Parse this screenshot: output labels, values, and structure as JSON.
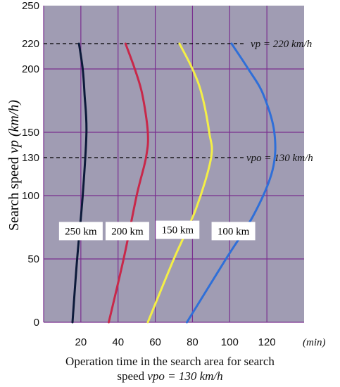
{
  "chart_data": {
    "type": "line",
    "xlabel": {
      "line1": "Operation time in the search area for search",
      "line2_prefix": "speed ",
      "line2_italic": "vpo = 130 km/h"
    },
    "x_unit": "(min)",
    "ylabel": {
      "text": "Search speed  ",
      "italic": "vp (km/h)"
    },
    "x_ticks": [
      20,
      40,
      60,
      80,
      100,
      120
    ],
    "y_ticks": [
      0,
      50,
      100,
      130,
      150,
      200,
      220,
      250
    ],
    "xlim": [
      0,
      140
    ],
    "ylim": [
      0,
      250
    ],
    "grid": true,
    "annotations": [
      {
        "text": "vp = 220 km/h",
        "y": 220
      },
      {
        "text": "vpo = 130 km/h",
        "y": 130
      }
    ],
    "series": [
      {
        "name": "250 km",
        "color": "#0c1a3a",
        "label_at": [
          20,
          72
        ],
        "points": [
          [
            15.5,
            0
          ],
          [
            18,
            50
          ],
          [
            21,
            100
          ],
          [
            23,
            150
          ],
          [
            22,
            180
          ],
          [
            21,
            200
          ],
          [
            19,
            220
          ]
        ]
      },
      {
        "name": "200 km",
        "color": "#c8284a",
        "label_at": [
          45,
          72
        ],
        "points": [
          [
            35,
            0
          ],
          [
            43,
            50
          ],
          [
            50,
            100
          ],
          [
            55,
            130
          ],
          [
            56,
            150
          ],
          [
            53,
            180
          ],
          [
            49,
            200
          ],
          [
            44,
            220
          ]
        ]
      },
      {
        "name": "150 km",
        "color": "#f4ef46",
        "label_at": [
          72,
          73
        ],
        "points": [
          [
            56,
            0
          ],
          [
            70,
            50
          ],
          [
            82,
            90
          ],
          [
            90,
            130
          ],
          [
            89,
            150
          ],
          [
            85,
            180
          ],
          [
            80,
            200
          ],
          [
            73,
            220
          ]
        ]
      },
      {
        "name": "100 km",
        "color": "#2f6fd8",
        "label_at": [
          102,
          72
        ],
        "points": [
          [
            77,
            0
          ],
          [
            98,
            50
          ],
          [
            113,
            85
          ],
          [
            123,
            120
          ],
          [
            124,
            150
          ],
          [
            118,
            180
          ],
          [
            110,
            200
          ],
          [
            101,
            220
          ]
        ]
      }
    ]
  }
}
